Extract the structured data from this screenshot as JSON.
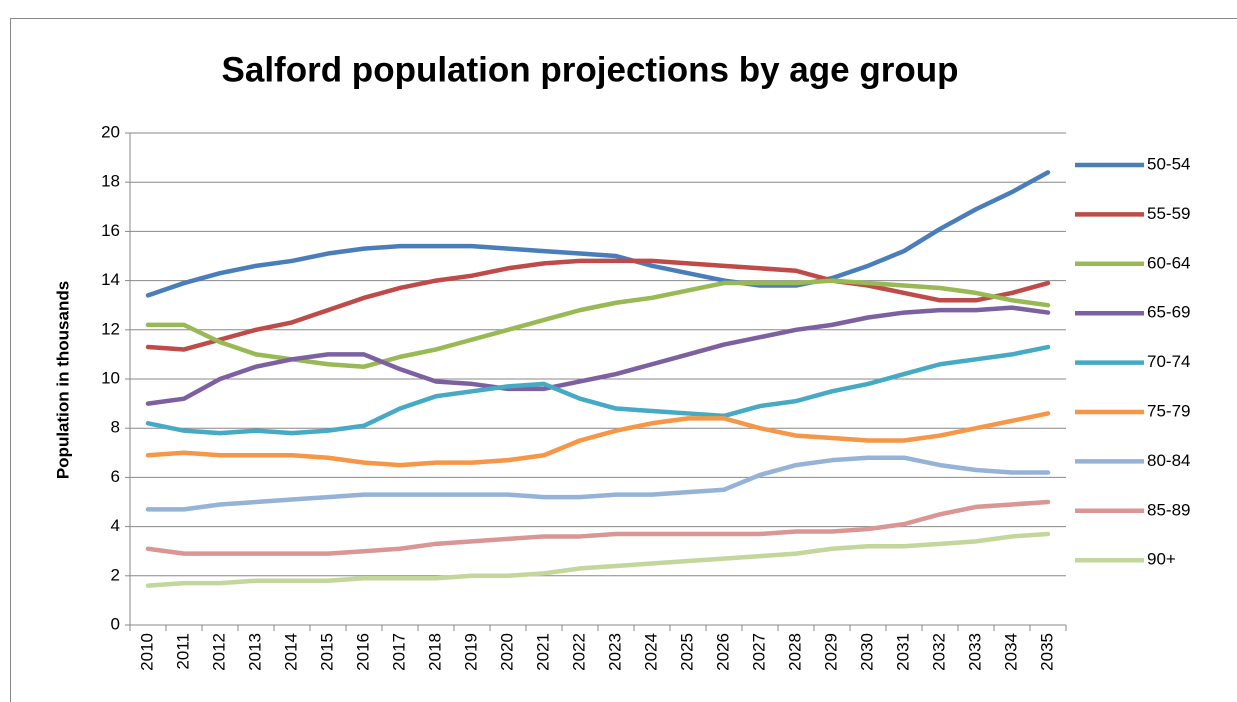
{
  "chart_data": {
    "type": "line",
    "title": "Salford population projections by age group",
    "ylabel": "Population in thousands",
    "categories": [
      "2010",
      "2011",
      "2012",
      "2013",
      "2014",
      "2015",
      "2016",
      "2017",
      "2018",
      "2019",
      "2020",
      "2021",
      "2022",
      "2023",
      "2024",
      "2025",
      "2026",
      "2027",
      "2028",
      "2029",
      "2030",
      "2031",
      "2032",
      "2033",
      "2034",
      "2035"
    ],
    "series": [
      {
        "name": "50-54",
        "color": "#4a7ebb",
        "values": [
          13.4,
          13.9,
          14.3,
          14.6,
          14.8,
          15.1,
          15.3,
          15.4,
          15.4,
          15.4,
          15.3,
          15.2,
          15.1,
          15.0,
          14.6,
          14.3,
          14.0,
          13.8,
          13.8,
          14.1,
          14.6,
          15.2,
          16.1,
          16.9,
          17.6,
          18.4
        ]
      },
      {
        "name": "55-59",
        "color": "#be4b48",
        "values": [
          11.3,
          11.2,
          11.6,
          12.0,
          12.3,
          12.8,
          13.3,
          13.7,
          14.0,
          14.2,
          14.5,
          14.7,
          14.8,
          14.8,
          14.8,
          14.7,
          14.6,
          14.5,
          14.4,
          14.0,
          13.8,
          13.5,
          13.2,
          13.2,
          13.5,
          13.9
        ]
      },
      {
        "name": "60-64",
        "color": "#98b954",
        "values": [
          12.2,
          12.2,
          11.5,
          11.0,
          10.8,
          10.6,
          10.5,
          10.9,
          11.2,
          11.6,
          12.0,
          12.4,
          12.8,
          13.1,
          13.3,
          13.6,
          13.9,
          13.9,
          13.9,
          14.0,
          13.9,
          13.8,
          13.7,
          13.5,
          13.2,
          13.0
        ]
      },
      {
        "name": "65-69",
        "color": "#7d60a0",
        "values": [
          9.0,
          9.2,
          10.0,
          10.5,
          10.8,
          11.0,
          11.0,
          10.4,
          9.9,
          9.8,
          9.6,
          9.6,
          9.9,
          10.2,
          10.6,
          11.0,
          11.4,
          11.7,
          12.0,
          12.2,
          12.5,
          12.7,
          12.8,
          12.8,
          12.9,
          12.7
        ]
      },
      {
        "name": "70-74",
        "color": "#46aac5",
        "values": [
          8.2,
          7.9,
          7.8,
          7.9,
          7.8,
          7.9,
          8.1,
          8.8,
          9.3,
          9.5,
          9.7,
          9.8,
          9.2,
          8.8,
          8.7,
          8.6,
          8.5,
          8.9,
          9.1,
          9.5,
          9.8,
          10.2,
          10.6,
          10.8,
          11.0,
          11.3
        ]
      },
      {
        "name": "75-79",
        "color": "#f79646",
        "values": [
          6.9,
          7.0,
          6.9,
          6.9,
          6.9,
          6.8,
          6.6,
          6.5,
          6.6,
          6.6,
          6.7,
          6.9,
          7.5,
          7.9,
          8.2,
          8.4,
          8.4,
          8.0,
          7.7,
          7.6,
          7.5,
          7.5,
          7.7,
          8.0,
          8.3,
          8.6
        ]
      },
      {
        "name": "80-84",
        "color": "#95b3d7",
        "values": [
          4.7,
          4.7,
          4.9,
          5.0,
          5.1,
          5.2,
          5.3,
          5.3,
          5.3,
          5.3,
          5.3,
          5.2,
          5.2,
          5.3,
          5.3,
          5.4,
          5.5,
          6.1,
          6.5,
          6.7,
          6.8,
          6.8,
          6.5,
          6.3,
          6.2,
          6.2
        ]
      },
      {
        "name": "85-89",
        "color": "#d99694",
        "values": [
          3.1,
          2.9,
          2.9,
          2.9,
          2.9,
          2.9,
          3.0,
          3.1,
          3.3,
          3.4,
          3.5,
          3.6,
          3.6,
          3.7,
          3.7,
          3.7,
          3.7,
          3.7,
          3.8,
          3.8,
          3.9,
          4.1,
          4.5,
          4.8,
          4.9,
          5.0
        ]
      },
      {
        "name": "90+",
        "color": "#c3d69b",
        "values": [
          1.6,
          1.7,
          1.7,
          1.8,
          1.8,
          1.8,
          1.9,
          1.9,
          1.9,
          2.0,
          2.0,
          2.1,
          2.3,
          2.4,
          2.5,
          2.6,
          2.7,
          2.8,
          2.9,
          3.1,
          3.2,
          3.2,
          3.3,
          3.4,
          3.6,
          3.7
        ]
      }
    ],
    "ylim": [
      0,
      20
    ],
    "yticks": [
      0,
      2,
      4,
      6,
      8,
      10,
      12,
      14,
      16,
      18,
      20
    ],
    "grid": true,
    "legend": "right"
  }
}
